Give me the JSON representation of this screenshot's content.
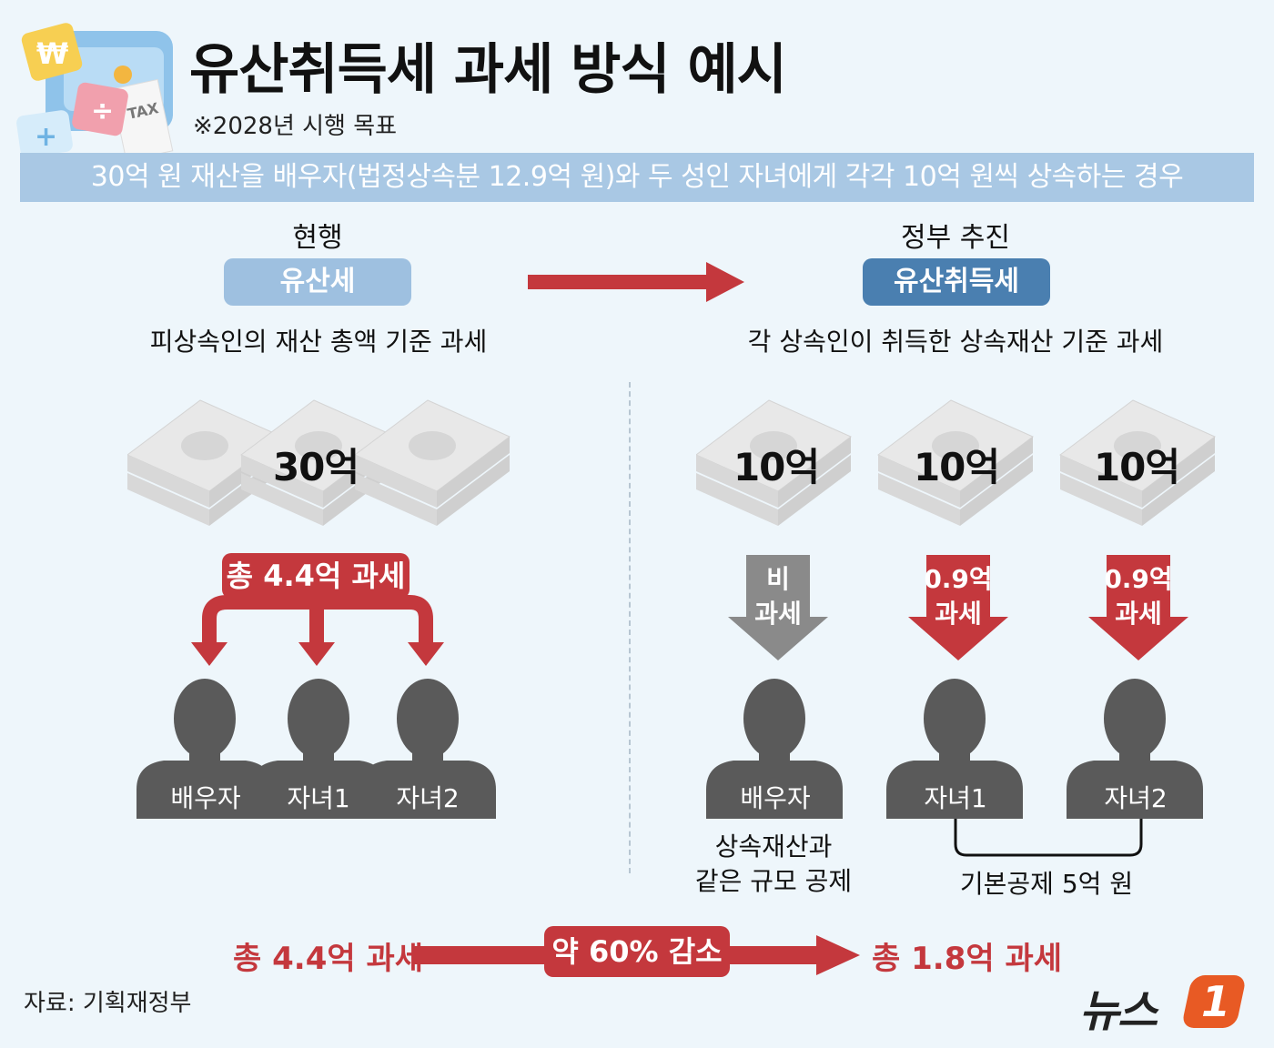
{
  "header": {
    "title": "유산취득세 과세 방식 예시",
    "subtitle": "※2028년 시행 목표",
    "banner": "30억 원 재산을 배우자(법정상속분 12.9억 원)와 두 성인 자녀에게 각각 10억 원씩 상속하는 경우"
  },
  "left": {
    "label": "현행",
    "tax_name": "유산세",
    "description": "피상속인의 재산 총액 기준 과세",
    "amount": "30억",
    "tax_total": "총 4.4억 과세",
    "persons": [
      "배우자",
      "자녀1",
      "자녀2"
    ]
  },
  "right": {
    "label": "정부 추진",
    "tax_name": "유산취득세",
    "description": "각 상속인이 취득한 상속재산 기준 과세",
    "amounts": [
      "10억",
      "10억",
      "10억"
    ],
    "arrow_labels": [
      {
        "line1": "비",
        "line2": "과세"
      },
      {
        "line1": "0.9억",
        "line2": "과세"
      },
      {
        "line1": "0.9억",
        "line2": "과세"
      }
    ],
    "persons": [
      "배우자",
      "자녀1",
      "자녀2"
    ],
    "spouse_note_1": "상속재산과",
    "spouse_note_2": "같은 규모 공제",
    "children_note": "기본공제  5억 원"
  },
  "bottom": {
    "before": "총 4.4억 과세",
    "change": "약 60% 감소",
    "after": "총 1.8억 과세"
  },
  "source": "자료: 기획재정부",
  "logo": {
    "text": "뉴스",
    "mark": "1"
  },
  "icons": {
    "won": "₩",
    "plus": "+",
    "divide": "÷",
    "tax": "TAX"
  },
  "colors": {
    "background": "#eef6fb",
    "banner": "#a9c8e4",
    "pill_light": "#9ec0e0",
    "pill_dark": "#4a7fb0",
    "accent_red": "#c4383d",
    "person_gray": "#5a5a5a",
    "arrow_gray": "#8a8a8a"
  }
}
